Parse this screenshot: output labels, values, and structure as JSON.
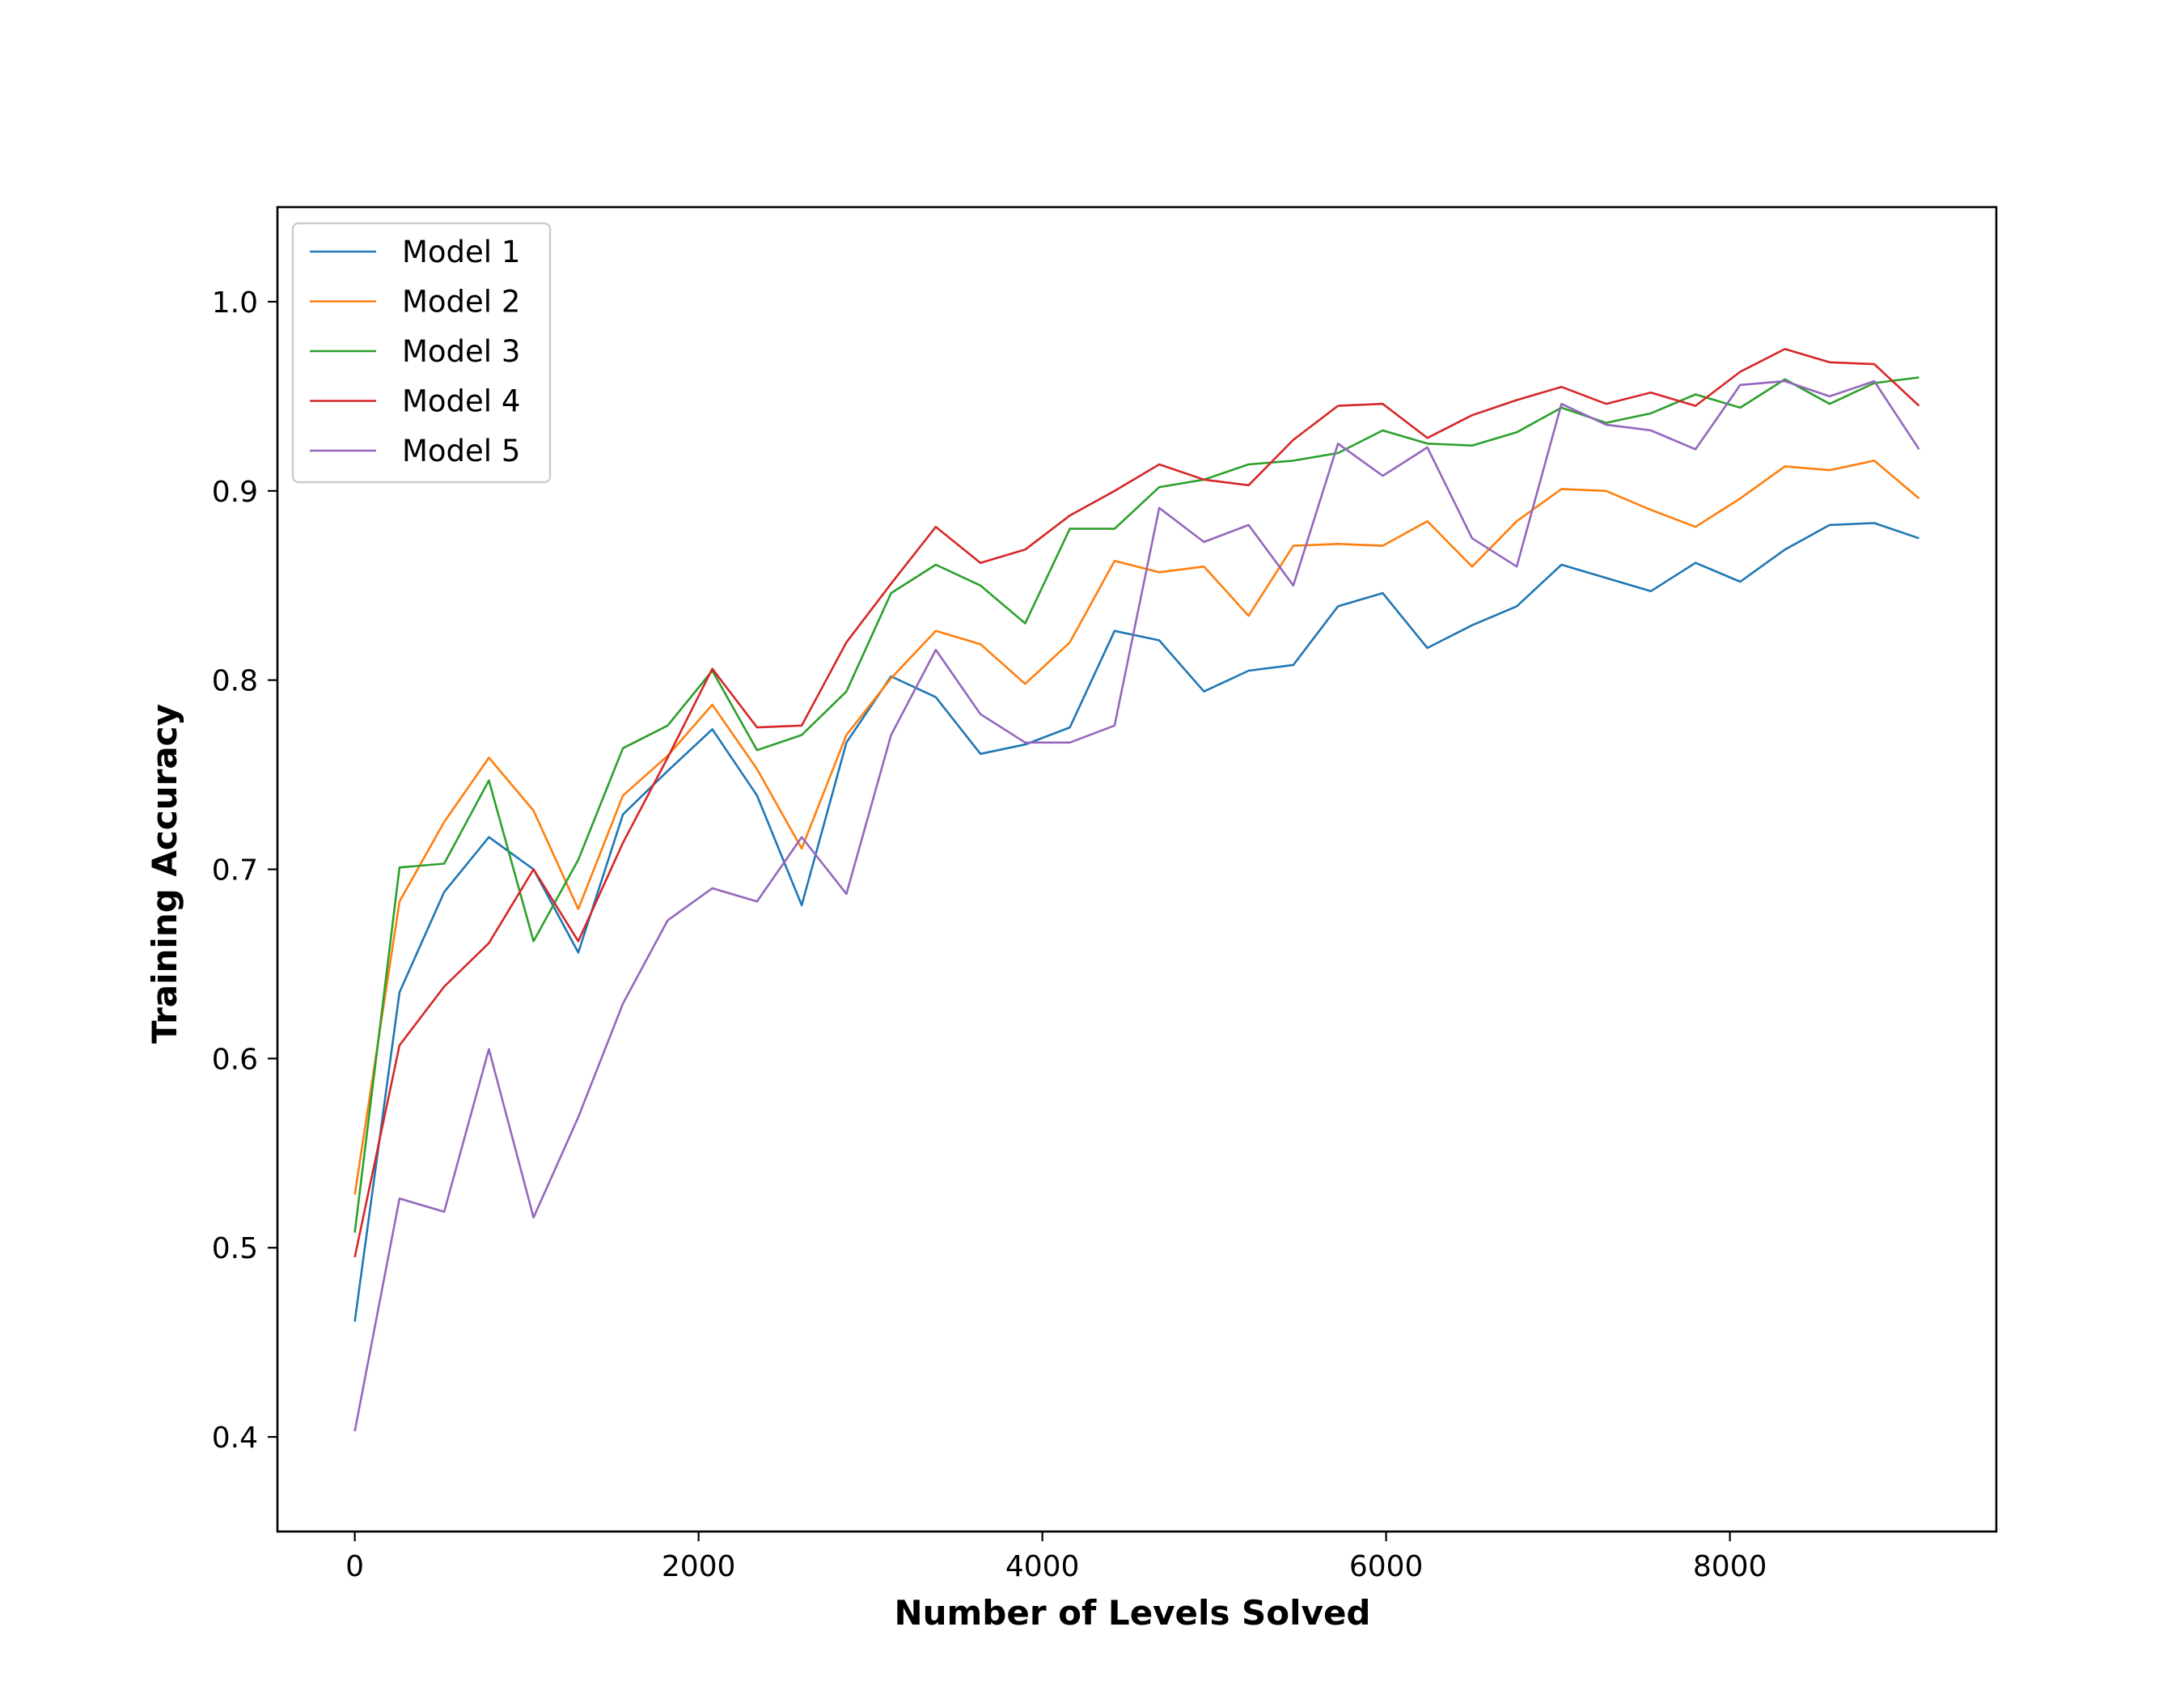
{
  "chart_data": {
    "type": "line",
    "title": "",
    "xlabel": "Number of Levels Solved",
    "ylabel": "Training Accuracy",
    "xlim": [
      -450,
      9550
    ],
    "ylim": [
      0.35,
      1.05
    ],
    "xticks": [
      0,
      2000,
      4000,
      6000,
      8000
    ],
    "yticks": [
      0.4,
      0.5,
      0.6,
      0.7,
      0.8,
      0.9,
      1.0
    ],
    "xtick_labels": [
      "0",
      "2000",
      "4000",
      "6000",
      "8000"
    ],
    "ytick_labels": [
      "0.4",
      "0.5",
      "0.6",
      "0.7",
      "0.8",
      "0.9",
      "1.0"
    ],
    "grid": false,
    "legend_position": "top-left",
    "x": [
      0,
      260,
      520,
      780,
      1040,
      1300,
      1560,
      1820,
      2080,
      2340,
      2600,
      2860,
      3120,
      3380,
      3640,
      3900,
      4160,
      4420,
      4680,
      4940,
      5200,
      5460,
      5720,
      5980,
      6240,
      6500,
      6760,
      7020,
      7280,
      7540,
      7800,
      8060,
      8320,
      8580,
      8840,
      9100
    ],
    "series": [
      {
        "name": "Model 1",
        "color": "#1f77b4",
        "values": [
          0.461,
          0.635,
          0.688,
          0.717,
          0.7,
          0.656,
          0.729,
          0.752,
          0.774,
          0.739,
          0.681,
          0.767,
          0.802,
          0.791,
          0.761,
          0.766,
          0.775,
          0.826,
          0.821,
          0.794,
          0.805,
          0.808,
          0.839,
          0.846,
          0.817,
          0.829,
          0.839,
          0.861,
          0.854,
          0.847,
          0.862,
          0.852,
          0.869,
          0.882,
          0.883,
          0.875
        ]
      },
      {
        "name": "Model 2",
        "color": "#ff7f0e",
        "values": [
          0.528,
          0.683,
          0.725,
          0.759,
          0.731,
          0.679,
          0.739,
          0.76,
          0.787,
          0.753,
          0.711,
          0.771,
          0.801,
          0.826,
          0.819,
          0.798,
          0.82,
          0.863,
          0.857,
          0.86,
          0.834,
          0.871,
          0.872,
          0.871,
          0.884,
          0.86,
          0.884,
          0.901,
          0.9,
          0.89,
          0.881,
          0.896,
          0.913,
          0.911,
          0.916,
          0.896
        ]
      },
      {
        "name": "Model 3",
        "color": "#2ca02c",
        "values": [
          0.508,
          0.701,
          0.703,
          0.747,
          0.662,
          0.705,
          0.764,
          0.776,
          0.805,
          0.763,
          0.771,
          0.794,
          0.846,
          0.861,
          0.85,
          0.83,
          0.88,
          0.88,
          0.902,
          0.906,
          0.914,
          0.916,
          0.92,
          0.932,
          0.925,
          0.924,
          0.931,
          0.944,
          0.936,
          0.941,
          0.951,
          0.944,
          0.959,
          0.946,
          0.957,
          0.96
        ]
      },
      {
        "name": "Model 4",
        "color": "#d62728",
        "values": [
          0.495,
          0.607,
          0.638,
          0.661,
          0.7,
          0.662,
          0.714,
          0.759,
          0.806,
          0.775,
          0.776,
          0.82,
          0.851,
          0.881,
          0.862,
          0.869,
          0.887,
          0.9,
          0.914,
          0.906,
          0.903,
          0.927,
          0.945,
          0.946,
          0.928,
          0.94,
          0.948,
          0.955,
          0.946,
          0.952,
          0.945,
          0.963,
          0.975,
          0.968,
          0.967,
          0.945
        ]
      },
      {
        "name": "Model 5",
        "color": "#9467bd",
        "values": [
          0.403,
          0.526,
          0.519,
          0.605,
          0.516,
          0.569,
          0.629,
          0.673,
          0.69,
          0.683,
          0.717,
          0.687,
          0.771,
          0.816,
          0.782,
          0.767,
          0.767,
          0.776,
          0.891,
          0.873,
          0.882,
          0.85,
          0.925,
          0.908,
          0.923,
          0.875,
          0.86,
          0.946,
          0.935,
          0.932,
          0.922,
          0.956,
          0.958,
          0.95,
          0.958,
          0.922
        ]
      }
    ]
  }
}
